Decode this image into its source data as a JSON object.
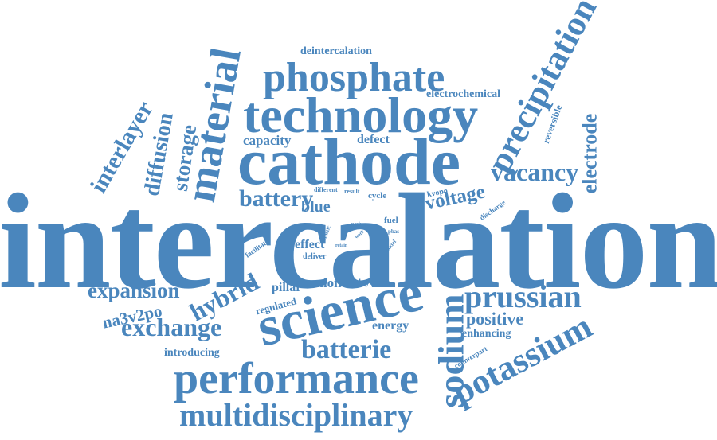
{
  "colors": {
    "word": "#4a86bd",
    "background": "#ffffff"
  },
  "words": {
    "intercalation": "intercalation",
    "cathode": "cathode",
    "technology": "technology",
    "phosphate": "phosphate",
    "science": "science",
    "performance": "performance",
    "multidisciplinary": "multidisciplinary",
    "material": "material",
    "prussian": "prussian",
    "potassium": "potassium",
    "precipitation": "precipitation",
    "sodium": "sodium",
    "vacancy": "vacancy",
    "batterie": "batterie",
    "exchange": "exchange",
    "battery": "battery",
    "interlayer": "interlayer",
    "expansion": "expansion",
    "hybrid": "hybrid",
    "diffusion": "diffusion",
    "storage": "storage",
    "electrode": "electrode",
    "voltage": "voltage",
    "positive": "positive",
    "na3v2po": "na3v2po",
    "blue": "blue",
    "capacity": "capacity",
    "defect": "defect",
    "energy": "energy",
    "anion": "anion",
    "pillar": "pillar",
    "effect": "effect",
    "electrochemical": "electrochemical",
    "deintercalation": "deintercalation",
    "introducing": "introducing",
    "enhancing": "enhancing",
    "regulated": "regulated",
    "reversible": "reversible",
    "layered": "layered",
    "fuel": "fuel",
    "cycle": "cycle",
    "result": "result",
    "different": "different",
    "kvopo": "kvopo",
    "discharge": "discharge",
    "counterpart": "counterpart",
    "facilitate": "facilitate",
    "deliver": "deliver",
    "kinetic": "kinetic",
    "pbas": "pbas",
    "initial": "initial",
    "retain": "retain",
    "peak": "peak",
    "work": "work",
    "low": "low"
  }
}
